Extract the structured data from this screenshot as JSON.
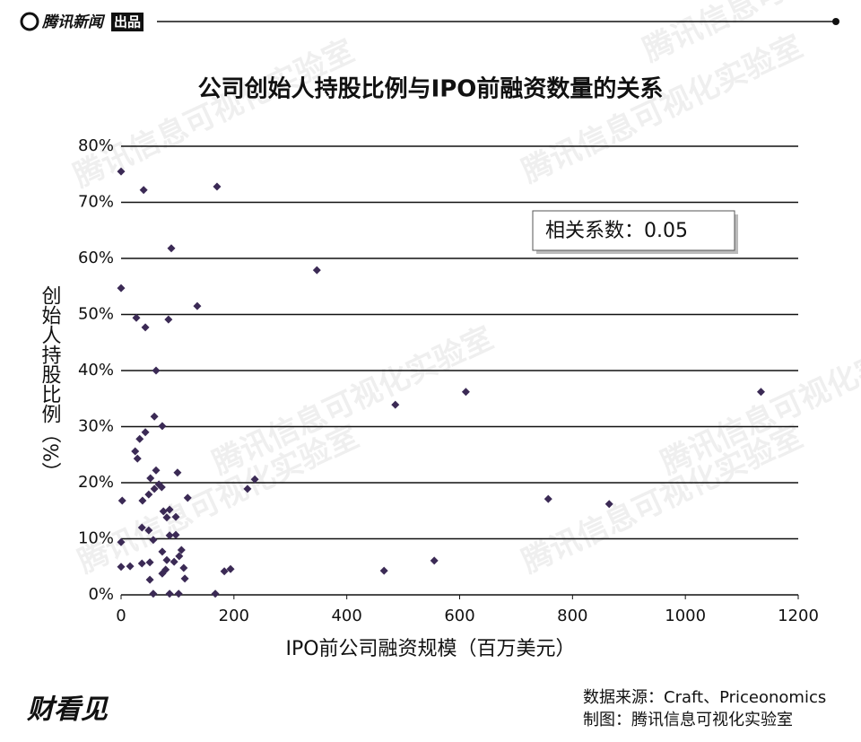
{
  "header": {
    "brand": "腾讯新闻",
    "tag": "出品"
  },
  "watermark": "腾讯信息可视化实验室",
  "chart_data": {
    "type": "scatter",
    "title": "公司创始人持股比例与IPO前融资数量的关系",
    "annotation": "相关系数：0.05",
    "x_label": "IPO前公司融资规模（百万美元）",
    "y_label": "创始人持股比例（%）",
    "color": "#3b2a55",
    "grid": true,
    "xlim": [
      0,
      1200
    ],
    "xticks": [
      0,
      200,
      400,
      600,
      800,
      1000,
      1200
    ],
    "ylim": [
      0,
      80
    ],
    "yticks": [
      {
        "value": 0,
        "label": "0%"
      },
      {
        "value": 10,
        "label": "10%"
      },
      {
        "value": 20,
        "label": "20%"
      },
      {
        "value": 30,
        "label": "30%"
      },
      {
        "value": 40,
        "label": "40%"
      },
      {
        "value": 50,
        "label": "50%"
      },
      {
        "value": 60,
        "label": "60%"
      },
      {
        "value": 70,
        "label": "70%"
      },
      {
        "value": 80,
        "label": "80%"
      }
    ],
    "x": [
      0,
      40,
      170,
      89,
      347,
      0,
      135,
      27,
      84,
      43,
      62,
      486,
      611,
      1134,
      59,
      73,
      43,
      33,
      25,
      29,
      62,
      100,
      237,
      52,
      67,
      59,
      72,
      224,
      118,
      757,
      2,
      49,
      38,
      865,
      75,
      86,
      81,
      97,
      37,
      49,
      86,
      97,
      57,
      0,
      107,
      73,
      103,
      81,
      94,
      37,
      51,
      16,
      0,
      111,
      555,
      466,
      194,
      183,
      79,
      73,
      113,
      51,
      57,
      86,
      102,
      167
    ],
    "values": [
      75.5,
      72.2,
      72.8,
      61.8,
      57.9,
      54.7,
      51.5,
      49.4,
      49.1,
      47.7,
      40,
      33.9,
      36.2,
      36.2,
      31.8,
      30.1,
      29,
      27.8,
      25.6,
      24.3,
      22.2,
      21.8,
      20.6,
      20.8,
      19.7,
      18.9,
      19.2,
      18.9,
      17.3,
      17.1,
      16.8,
      17.9,
      16.8,
      16.2,
      14.9,
      15.2,
      13.8,
      13.9,
      12,
      11.5,
      10.6,
      10.7,
      9.8,
      9.4,
      8,
      7.7,
      6.9,
      6.2,
      5.9,
      5.6,
      5.8,
      5.1,
      5,
      4.8,
      6.1,
      4.3,
      4.6,
      4.2,
      4.5,
      3.8,
      2.9,
      2.7,
      0.2,
      0.2,
      0.2,
      0.2
    ]
  },
  "footer": {
    "logo": "财看见",
    "source": "数据来源：Craft、Priceonomics",
    "credit": "制图：腾讯信息可视化实验室"
  }
}
